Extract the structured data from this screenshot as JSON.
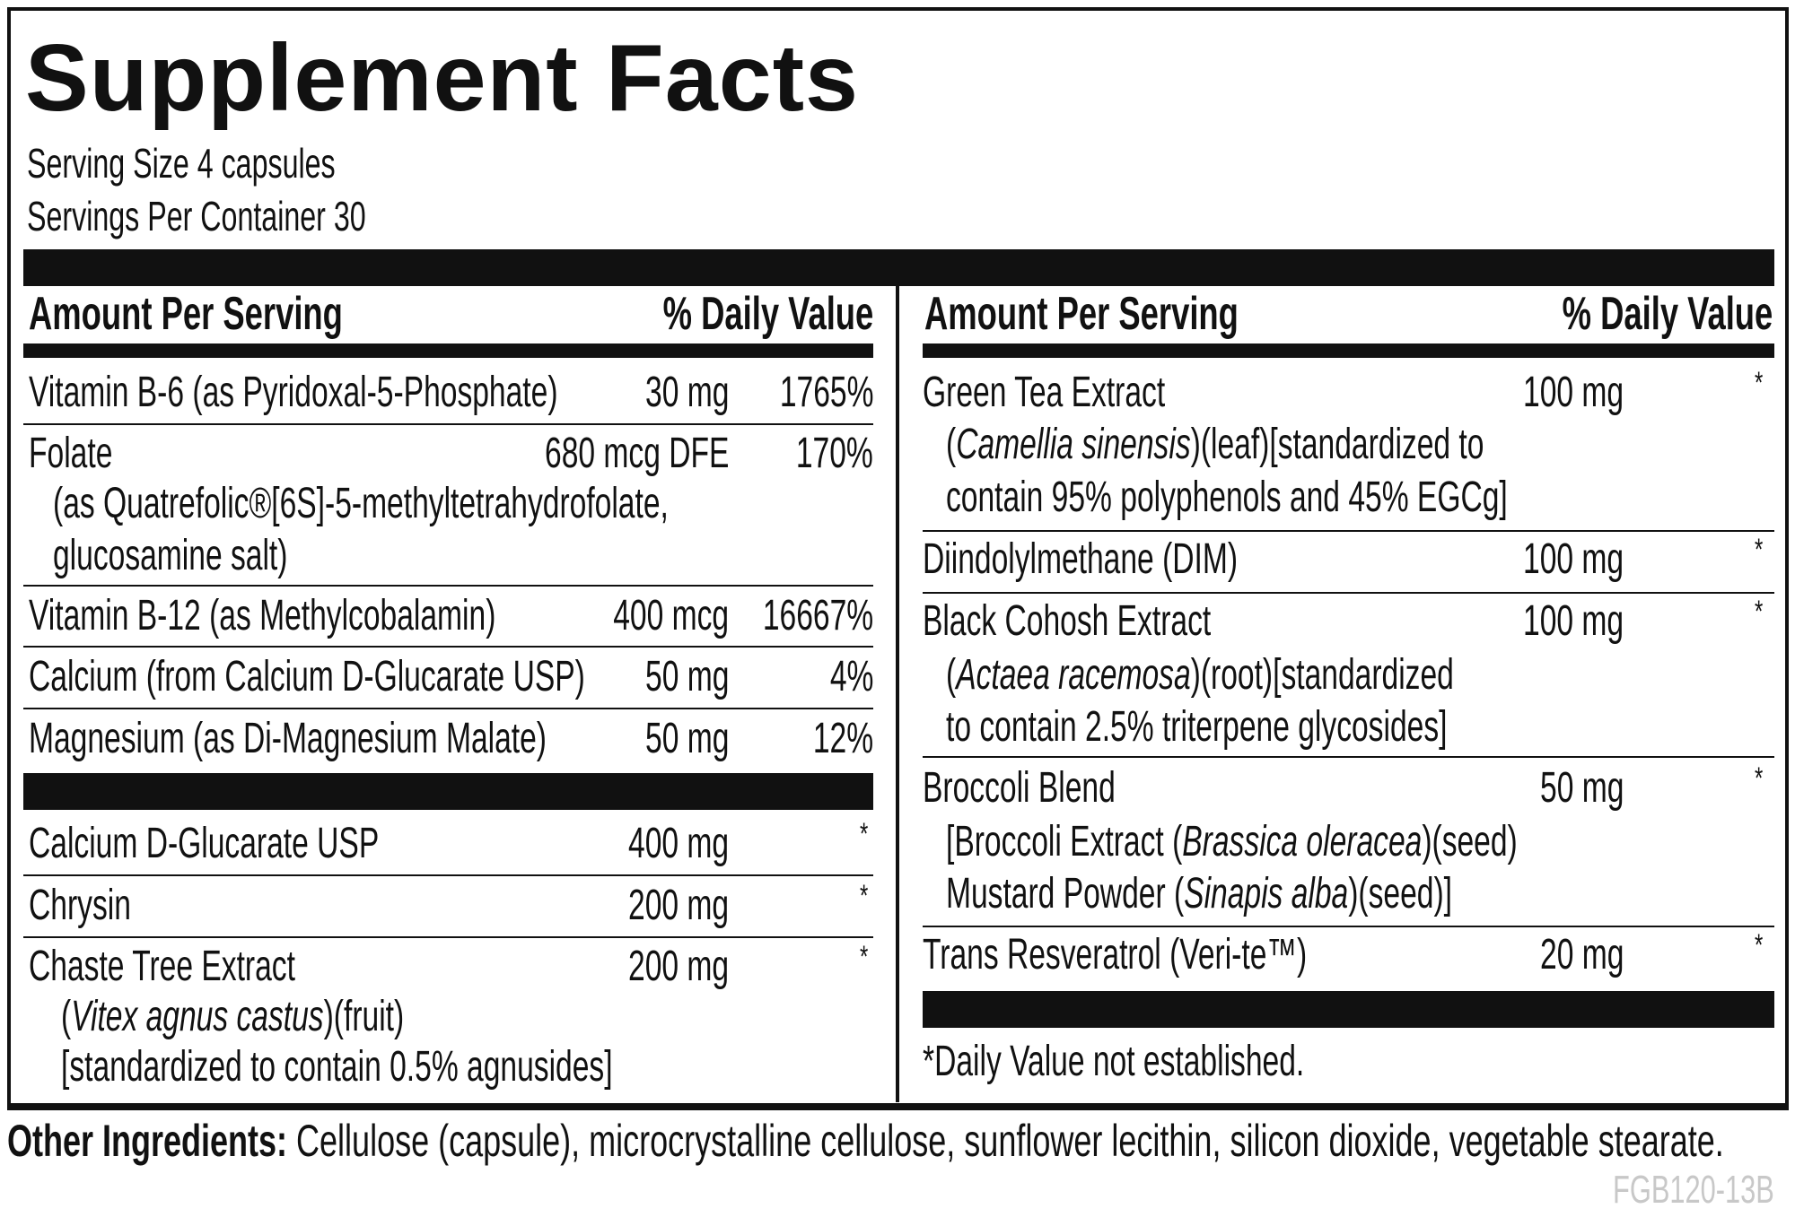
{
  "title": "Supplement Facts",
  "serving_size": "Serving Size 4 capsules",
  "servings_per_container": "Servings Per Container 30",
  "header": {
    "amount": "Amount Per Serving",
    "dv": "% Daily Value"
  },
  "left": {
    "b6": {
      "name": "Vitamin B-6 (as Pyridoxal-5-Phosphate)",
      "amount": "30 mg",
      "dv": "1765%"
    },
    "folate": {
      "name": "Folate",
      "amount": "680 mcg DFE",
      "dv": "170%",
      "line2": "(as Quatrefolic®[6S]-5-methyltetrahydrofolate,",
      "line3": "glucosamine salt)"
    },
    "b12": {
      "name": "Vitamin B-12 (as Methylcobalamin)",
      "amount": "400 mcg",
      "dv": "16667%"
    },
    "calcium": {
      "name": "Calcium (from Calcium D-Glucarate USP)",
      "amount": "50 mg",
      "dv": "4%"
    },
    "magnesium": {
      "name": "Magnesium (as Di-Magnesium Malate)",
      "amount": "50 mg",
      "dv": "12%"
    },
    "cdg": {
      "name": "Calcium D-Glucarate USP",
      "amount": "400 mg",
      "dv": "*"
    },
    "chrysin": {
      "name": "Chrysin",
      "amount": "200 mg",
      "dv": "*"
    },
    "chaste": {
      "name": "Chaste Tree Extract",
      "amount": "200 mg",
      "dv": "*",
      "line2_pre": "(",
      "line2_it": "Vitex agnus castus",
      "line2_post": ")(fruit)",
      "line3": "[standardized to contain 0.5% agnusides]"
    }
  },
  "right": {
    "green_tea": {
      "name": "Green Tea Extract",
      "amount": "100 mg",
      "dv": "*",
      "line2_pre": "(",
      "line2_it": "Camellia sinensis",
      "line2_post": ")(leaf)[standardized to",
      "line3": "contain 95% polyphenols and 45% EGCg]"
    },
    "dim": {
      "name": "Diindolylmethane (DIM)",
      "amount": "100 mg",
      "dv": "*"
    },
    "black_cohosh": {
      "name": "Black Cohosh Extract",
      "amount": "100 mg",
      "dv": "*",
      "line2_pre": "(",
      "line2_it": "Actaea racemosa",
      "line2_post": ")(root)[standardized",
      "line3": "to contain 2.5% triterpene glycosides]"
    },
    "broccoli": {
      "name": "Broccoli Blend",
      "amount": "50 mg",
      "dv": "*",
      "line2_pre": "[Broccoli Extract (",
      "line2_it": "Brassica oleracea",
      "line2_post": ")(seed)",
      "line3_pre": "Mustard Powder (",
      "line3_it": "Sinapis alba",
      "line3_post": ")(seed)]"
    },
    "resveratrol": {
      "name": "Trans Resveratrol (Veri-te™)",
      "amount": "20 mg",
      "dv": "*"
    },
    "footnote": "*Daily Value not established."
  },
  "other_ingredients": {
    "label": "Other Ingredients:",
    "text": " Cellulose (capsule), microcrystalline cellulose, sunflower lecithin, silicon dioxide, vegetable stearate."
  },
  "code": "FGB120-13B"
}
